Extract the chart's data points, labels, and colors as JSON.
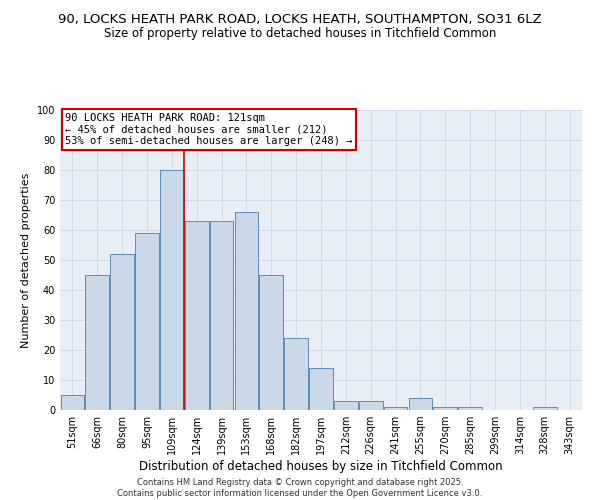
{
  "title1": "90, LOCKS HEATH PARK ROAD, LOCKS HEATH, SOUTHAMPTON, SO31 6LZ",
  "title2": "Size of property relative to detached houses in Titchfield Common",
  "xlabel": "Distribution of detached houses by size in Titchfield Common",
  "ylabel": "Number of detached properties",
  "categories": [
    "51sqm",
    "66sqm",
    "80sqm",
    "95sqm",
    "109sqm",
    "124sqm",
    "139sqm",
    "153sqm",
    "168sqm",
    "182sqm",
    "197sqm",
    "212sqm",
    "226sqm",
    "241sqm",
    "255sqm",
    "270sqm",
    "285sqm",
    "299sqm",
    "314sqm",
    "328sqm",
    "343sqm"
  ],
  "values": [
    5,
    45,
    52,
    59,
    80,
    63,
    63,
    66,
    45,
    24,
    14,
    3,
    3,
    1,
    4,
    1,
    1,
    0,
    0,
    1,
    0
  ],
  "bar_color": "#c9d9e8",
  "bar_edge_color": "#5b8db8",
  "red_line_index": 4.5,
  "annotation_text": "90 LOCKS HEATH PARK ROAD: 121sqm\n← 45% of detached houses are smaller (212)\n53% of semi-detached houses are larger (248) →",
  "annotation_box_color": "#ffffff",
  "annotation_box_edge": "#cc0000",
  "annotation_text_color": "#000000",
  "red_line_color": "#cc0000",
  "grid_color": "#d0d8e8",
  "background_color": "#e8eef5",
  "ylim": [
    0,
    100
  ],
  "yticks": [
    0,
    10,
    20,
    30,
    40,
    50,
    60,
    70,
    80,
    90,
    100
  ],
  "footer1": "Contains HM Land Registry data © Crown copyright and database right 2025.",
  "footer2": "Contains public sector information licensed under the Open Government Licence v3.0.",
  "title_fontsize": 9.5,
  "subtitle_fontsize": 8.5,
  "tick_fontsize": 7,
  "ylabel_fontsize": 8,
  "xlabel_fontsize": 8.5,
  "annotation_fontsize": 7.5,
  "footer_fontsize": 6
}
